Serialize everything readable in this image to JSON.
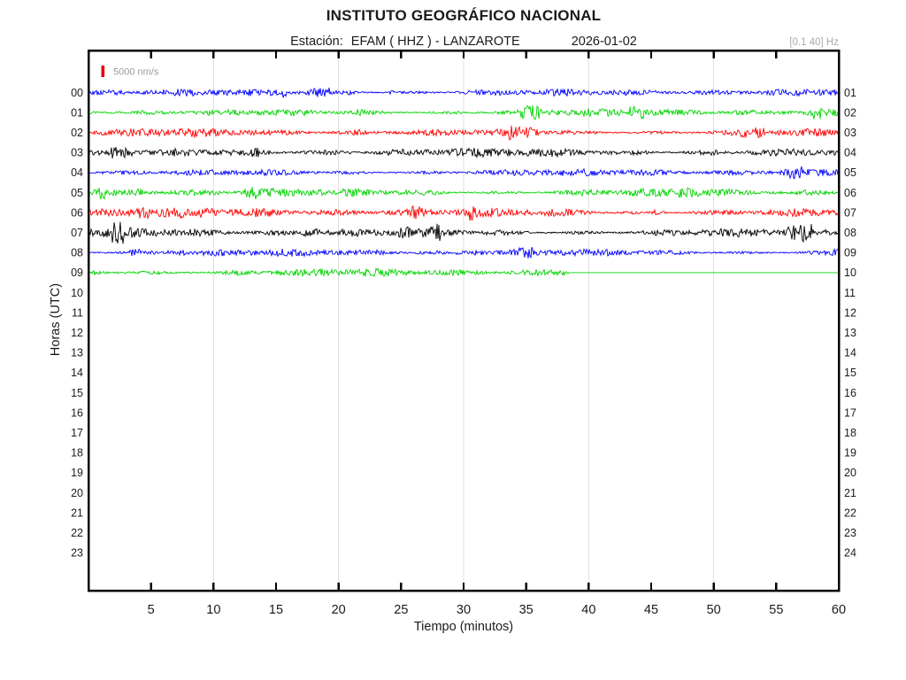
{
  "header": {
    "title": "INSTITUTO GEOGRÁFICO NACIONAL",
    "station_label": "Estación:",
    "station": "EFAM ( HHZ ) - LANZAROTE",
    "date": "2026-01-02",
    "filter_band": "[0.1 40] Hz"
  },
  "axes": {
    "xlabel": "Tiempo (minutos)",
    "ylabel": "Horas (UTC)"
  },
  "scale_indicator": {
    "label": "5000 nm/s"
  },
  "colors": {
    "blue": "#0000ff",
    "green": "#00d400",
    "red": "#ff0000",
    "black": "#000000",
    "grid": "#e0e0e0",
    "frame": "#000000",
    "tick": "#000000",
    "text": "#1a1a1a",
    "muted_text": "#9a9a9a",
    "band_text": "#ababab",
    "scale_marker": "#e8000d"
  },
  "chart_data": {
    "type": "line",
    "variant": "helicorder-seismogram",
    "title": "INSTITUTO GEOGRÁFICO NACIONAL",
    "subtitle": "Estación: EFAM ( HHZ ) - LANZAROTE  2026-01-02",
    "xlabel": "Tiempo (minutos)",
    "ylabel": "Horas (UTC)",
    "x_range_minutes": [
      0,
      60
    ],
    "x_ticks": [
      5,
      10,
      15,
      20,
      25,
      30,
      35,
      40,
      45,
      50,
      55,
      60
    ],
    "grid_minutes": [
      10,
      20,
      30,
      40,
      50
    ],
    "grid": "vertical light-gray lines at 10-minute intervals",
    "legend_position": "none",
    "rows_total": 24,
    "row_labels_left": [
      "00",
      "01",
      "02",
      "03",
      "04",
      "05",
      "06",
      "07",
      "08",
      "09",
      "10",
      "11",
      "12",
      "13",
      "14",
      "15",
      "16",
      "17",
      "18",
      "19",
      "20",
      "21",
      "22",
      "23"
    ],
    "row_labels_right": [
      "01",
      "02",
      "03",
      "04",
      "05",
      "06",
      "07",
      "08",
      "09",
      "10",
      "11",
      "12",
      "13",
      "14",
      "15",
      "16",
      "17",
      "18",
      "19",
      "20",
      "21",
      "22",
      "23",
      "24"
    ],
    "amplitude_scale_label": "5000 nm/s",
    "filter_band_hz": "[0.1 40] Hz",
    "trace_color_cycle": [
      "#0000ff",
      "#00d400",
      "#ff0000",
      "#000000"
    ],
    "traces": [
      {
        "hour": "00",
        "color": "#0000ff",
        "start_min": 0,
        "end_min": 60,
        "signal": "continuous background noise"
      },
      {
        "hour": "01",
        "color": "#00d400",
        "start_min": 0,
        "end_min": 60,
        "signal": "continuous background noise"
      },
      {
        "hour": "02",
        "color": "#ff0000",
        "start_min": 0,
        "end_min": 60,
        "signal": "continuous background noise"
      },
      {
        "hour": "03",
        "color": "#000000",
        "start_min": 0,
        "end_min": 60,
        "signal": "continuous background noise"
      },
      {
        "hour": "04",
        "color": "#0000ff",
        "start_min": 0,
        "end_min": 60,
        "signal": "continuous background noise"
      },
      {
        "hour": "05",
        "color": "#00d400",
        "start_min": 0,
        "end_min": 60,
        "signal": "continuous background noise"
      },
      {
        "hour": "06",
        "color": "#ff0000",
        "start_min": 0,
        "end_min": 60,
        "signal": "continuous background noise"
      },
      {
        "hour": "07",
        "color": "#000000",
        "start_min": 0,
        "end_min": 60,
        "signal": "continuous background noise"
      },
      {
        "hour": "08",
        "color": "#0000ff",
        "start_min": 0,
        "end_min": 60,
        "signal": "continuous background noise"
      },
      {
        "hour": "09",
        "color": "#00d400",
        "start_min": 0,
        "end_min": 38.4,
        "signal": "background noise, recording stops near minute 38",
        "flat_line_to_min": 60
      }
    ],
    "empty_rows": [
      "10",
      "11",
      "12",
      "13",
      "14",
      "15",
      "16",
      "17",
      "18",
      "19",
      "20",
      "21",
      "22",
      "23"
    ]
  }
}
